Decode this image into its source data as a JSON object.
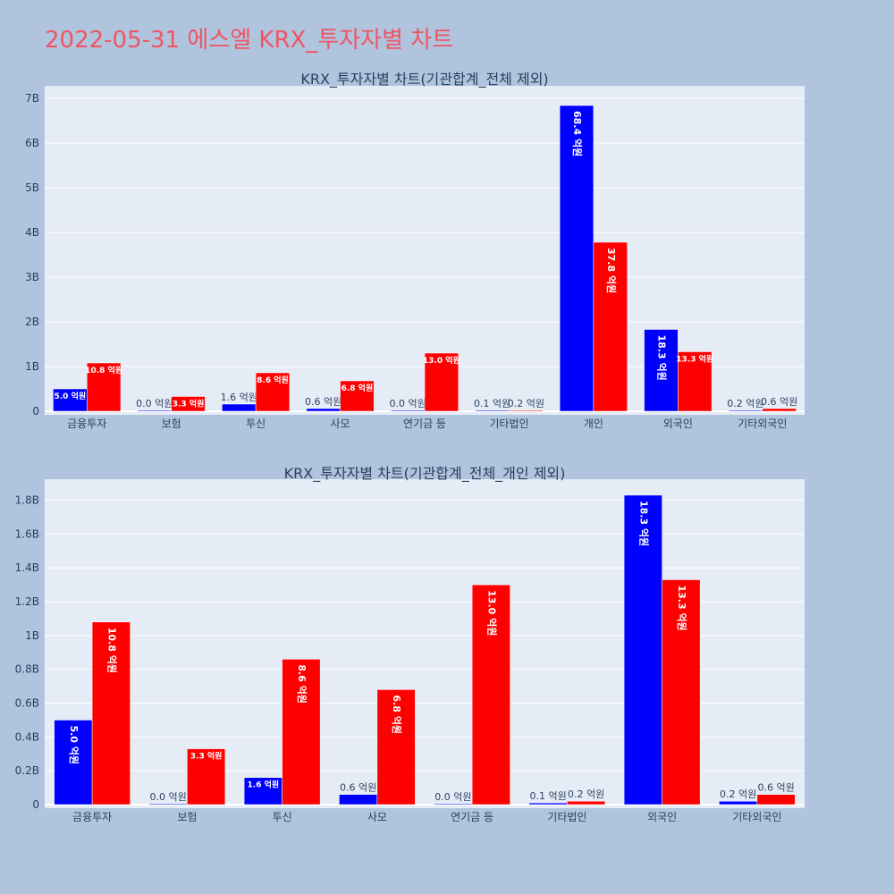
{
  "page": {
    "title": "2022-05-31 에스엘 KRX_투자자별 차트"
  },
  "colors": {
    "background": "#b0c4de",
    "plot_background": "#e5ecf6",
    "series_a": "#0000ff",
    "series_b": "#ff0000",
    "title": "#ef5563",
    "text": "#2a3f5f"
  },
  "chart_data": [
    {
      "type": "bar",
      "title": "KRX_투자자별 차트(기관합계_전체 제외)",
      "categories": [
        "금융투자",
        "보험",
        "투신",
        "사모",
        "연기금 등",
        "기타법인",
        "개인",
        "외국인",
        "기타외국인"
      ],
      "series": [
        {
          "color": "#0000ff",
          "values": [
            0.5,
            0.004,
            0.16,
            0.06,
            0.004,
            0.01,
            6.84,
            1.83,
            0.02
          ],
          "labels": [
            "5.0 억원",
            "0.0 억원",
            "1.6 억원",
            "0.6 억원",
            "0.0 억원",
            "0.1 억원",
            "68.4 억원",
            "18.3 억원",
            "0.2 억원"
          ]
        },
        {
          "color": "#ff0000",
          "values": [
            1.08,
            0.33,
            0.86,
            0.68,
            1.3,
            0.02,
            3.78,
            1.33,
            0.06
          ],
          "labels": [
            "10.8 억원",
            "3.3 억원",
            "8.6 억원",
            "6.8 억원",
            "13.0 억원",
            "0.2 억원",
            "37.8 억원",
            "13.3 억원",
            "0.6 억원"
          ]
        }
      ],
      "ylim": [
        0,
        7.3
      ],
      "yticks": [
        0,
        1,
        2,
        3,
        4,
        5,
        6,
        7
      ],
      "ytick_labels": [
        "0",
        "1B",
        "2B",
        "3B",
        "4B",
        "5B",
        "6B",
        "7B"
      ],
      "grid": true,
      "legend": "none"
    },
    {
      "type": "bar",
      "title": "KRX_투자자별 차트(기관합계_전체_개인 제외)",
      "categories": [
        "금융투자",
        "보험",
        "투신",
        "사모",
        "연기금 등",
        "기타법인",
        "외국인",
        "기타외국인"
      ],
      "series": [
        {
          "color": "#0000ff",
          "values": [
            0.5,
            0.004,
            0.16,
            0.06,
            0.004,
            0.01,
            1.83,
            0.02
          ],
          "labels": [
            "5.0 억원",
            "0.0 억원",
            "1.6 억원",
            "0.6 억원",
            "0.0 억원",
            "0.1 억원",
            "18.3 억원",
            "0.2 억원"
          ]
        },
        {
          "color": "#ff0000",
          "values": [
            1.08,
            0.33,
            0.86,
            0.68,
            1.3,
            0.02,
            1.33,
            0.06
          ],
          "labels": [
            "10.8 억원",
            "3.3 억원",
            "8.6 억원",
            "6.8 억원",
            "13.0 억원",
            "0.2 억원",
            "13.3 억원",
            "0.6 억원"
          ]
        }
      ],
      "ylim": [
        0,
        1.93
      ],
      "yticks": [
        0,
        0.2,
        0.4,
        0.6,
        0.8,
        1.0,
        1.2,
        1.4,
        1.6,
        1.8
      ],
      "ytick_labels": [
        "0",
        "0.2B",
        "0.4B",
        "0.6B",
        "0.8B",
        "1B",
        "1.2B",
        "1.4B",
        "1.6B",
        "1.8B"
      ],
      "grid": true,
      "legend": "none"
    }
  ]
}
